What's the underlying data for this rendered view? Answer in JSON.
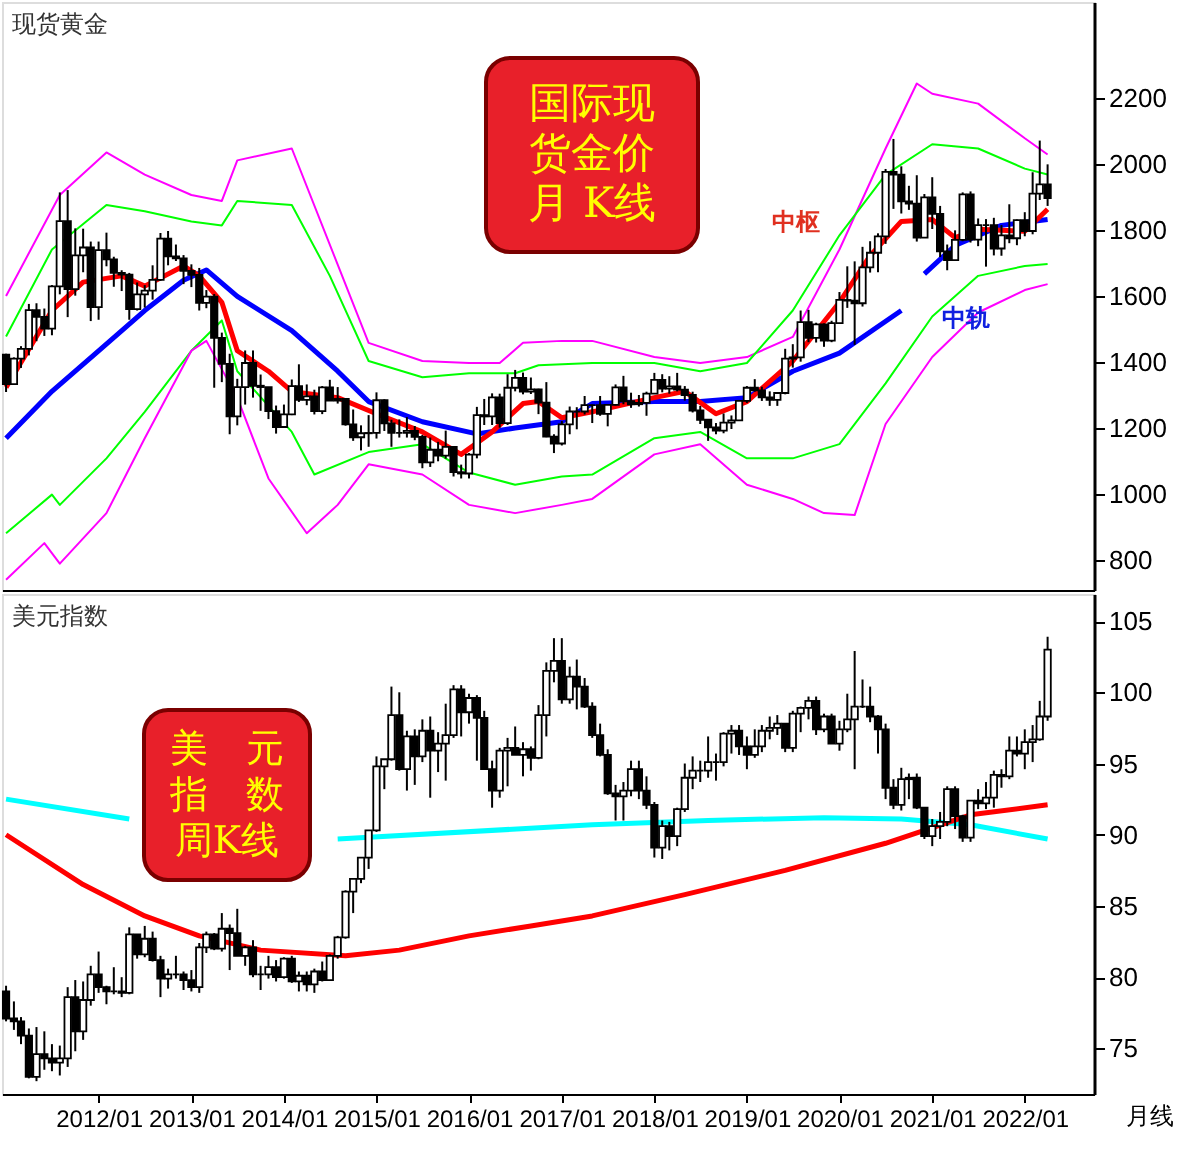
{
  "chart_data": [
    {
      "type": "candlestick",
      "title": "现货黄金",
      "grid": false,
      "tick_labels": "y",
      "xlim": [
        "2010-12-16",
        "2022-10-01"
      ],
      "ylim": [
        708,
        2490
      ],
      "yticks": [
        800,
        1000,
        1200,
        1400,
        1600,
        1800,
        2000,
        2200
      ],
      "x": [
        "2011-01",
        "2011-02",
        "2011-03",
        "2011-04",
        "2011-05",
        "2011-06",
        "2011-07",
        "2011-08",
        "2011-09",
        "2011-10",
        "2011-11",
        "2011-12",
        "2012-01",
        "2012-02",
        "2012-03",
        "2012-04",
        "2012-05",
        "2012-06",
        "2012-07",
        "2012-08",
        "2012-09",
        "2012-10",
        "2012-11",
        "2012-12",
        "2013-01",
        "2013-02",
        "2013-03",
        "2013-04",
        "2013-05",
        "2013-06",
        "2013-07",
        "2013-08",
        "2013-09",
        "2013-10",
        "2013-11",
        "2013-12",
        "2014-01",
        "2014-02",
        "2014-03",
        "2014-04",
        "2014-05",
        "2014-06",
        "2014-07",
        "2014-08",
        "2014-09",
        "2014-10",
        "2014-11",
        "2014-12",
        "2015-01",
        "2015-02",
        "2015-03",
        "2015-04",
        "2015-05",
        "2015-06",
        "2015-07",
        "2015-08",
        "2015-09",
        "2015-10",
        "2015-11",
        "2015-12",
        "2016-01",
        "2016-02",
        "2016-03",
        "2016-04",
        "2016-05",
        "2016-06",
        "2016-07",
        "2016-08",
        "2016-09",
        "2016-10",
        "2016-11",
        "2016-12",
        "2017-01",
        "2017-02",
        "2017-03",
        "2017-04",
        "2017-05",
        "2017-06",
        "2017-07",
        "2017-08",
        "2017-09",
        "2017-10",
        "2017-11",
        "2017-12",
        "2018-01",
        "2018-02",
        "2018-03",
        "2018-04",
        "2018-05",
        "2018-06",
        "2018-07",
        "2018-08",
        "2018-09",
        "2018-10",
        "2018-11",
        "2018-12",
        "2019-01",
        "2019-02",
        "2019-03",
        "2019-04",
        "2019-05",
        "2019-06",
        "2019-07",
        "2019-08",
        "2019-09",
        "2019-10",
        "2019-11",
        "2019-12",
        "2020-01",
        "2020-02",
        "2020-03",
        "2020-04",
        "2020-05",
        "2020-06",
        "2020-07",
        "2020-08",
        "2020-09",
        "2020-10",
        "2020-11",
        "2020-12",
        "2021-01",
        "2021-02",
        "2021-03",
        "2021-04",
        "2021-05",
        "2021-06",
        "2021-07",
        "2021-08",
        "2021-09",
        "2021-10",
        "2021-11",
        "2021-12",
        "2022-01",
        "2022-02",
        "2022-03",
        "2022-04"
      ],
      "ohlc": [
        [
          1421,
          1424,
          1308,
          1332
        ],
        [
          1332,
          1413,
          1330,
          1409
        ],
        [
          1409,
          1447,
          1381,
          1439
        ],
        [
          1439,
          1575,
          1419,
          1556
        ],
        [
          1556,
          1577,
          1462,
          1536
        ],
        [
          1536,
          1561,
          1478,
          1500
        ],
        [
          1500,
          1632,
          1480,
          1628
        ],
        [
          1628,
          1913,
          1604,
          1826
        ],
        [
          1826,
          1920,
          1535,
          1620
        ],
        [
          1620,
          1804,
          1600,
          1722
        ],
        [
          1722,
          1803,
          1671,
          1746
        ],
        [
          1746,
          1764,
          1523,
          1565
        ],
        [
          1565,
          1764,
          1527,
          1738
        ],
        [
          1738,
          1791,
          1689,
          1710
        ],
        [
          1710,
          1718,
          1627,
          1669
        ],
        [
          1669,
          1677,
          1614,
          1664
        ],
        [
          1664,
          1669,
          1527,
          1559
        ],
        [
          1559,
          1640,
          1555,
          1604
        ],
        [
          1604,
          1632,
          1564,
          1615
        ],
        [
          1615,
          1692,
          1588,
          1648
        ],
        [
          1648,
          1790,
          1645,
          1773
        ],
        [
          1773,
          1796,
          1692,
          1719
        ],
        [
          1719,
          1755,
          1705,
          1713
        ],
        [
          1713,
          1723,
          1635,
          1675
        ],
        [
          1675,
          1695,
          1626,
          1663
        ],
        [
          1663,
          1684,
          1555,
          1578
        ],
        [
          1578,
          1617,
          1562,
          1597
        ],
        [
          1597,
          1605,
          1321,
          1472
        ],
        [
          1472,
          1488,
          1338,
          1393
        ],
        [
          1393,
          1424,
          1180,
          1234
        ],
        [
          1234,
          1348,
          1207,
          1323
        ],
        [
          1323,
          1434,
          1270,
          1396
        ],
        [
          1396,
          1434,
          1291,
          1327
        ],
        [
          1327,
          1361,
          1251,
          1323
        ],
        [
          1323,
          1323,
          1226,
          1250
        ],
        [
          1250,
          1267,
          1182,
          1202
        ],
        [
          1202,
          1270,
          1200,
          1240
        ],
        [
          1240,
          1346,
          1238,
          1326
        ],
        [
          1326,
          1392,
          1278,
          1284
        ],
        [
          1284,
          1331,
          1268,
          1295
        ],
        [
          1295,
          1315,
          1240,
          1250
        ],
        [
          1250,
          1326,
          1241,
          1322
        ],
        [
          1322,
          1345,
          1282,
          1282
        ],
        [
          1282,
          1323,
          1273,
          1287
        ],
        [
          1287,
          1288,
          1206,
          1210
        ],
        [
          1210,
          1255,
          1160,
          1171
        ],
        [
          1171,
          1207,
          1131,
          1183
        ],
        [
          1183,
          1238,
          1142,
          1184
        ],
        [
          1184,
          1307,
          1167,
          1283
        ],
        [
          1283,
          1286,
          1190,
          1213
        ],
        [
          1213,
          1224,
          1142,
          1184
        ],
        [
          1184,
          1225,
          1170,
          1184
        ],
        [
          1184,
          1232,
          1170,
          1190
        ],
        [
          1190,
          1205,
          1162,
          1172
        ],
        [
          1172,
          1178,
          1077,
          1095
        ],
        [
          1095,
          1170,
          1081,
          1133
        ],
        [
          1133,
          1157,
          1098,
          1115
        ],
        [
          1115,
          1191,
          1106,
          1142
        ],
        [
          1142,
          1143,
          1052,
          1065
        ],
        [
          1065,
          1088,
          1046,
          1061
        ],
        [
          1061,
          1123,
          1046,
          1118
        ],
        [
          1118,
          1263,
          1107,
          1238
        ],
        [
          1238,
          1287,
          1208,
          1234
        ],
        [
          1234,
          1304,
          1208,
          1292
        ],
        [
          1292,
          1303,
          1200,
          1214
        ],
        [
          1214,
          1362,
          1208,
          1321
        ],
        [
          1321,
          1375,
          1310,
          1351
        ],
        [
          1351,
          1367,
          1301,
          1309
        ],
        [
          1309,
          1352,
          1302,
          1316
        ],
        [
          1316,
          1318,
          1241,
          1276
        ],
        [
          1276,
          1338,
          1171,
          1173
        ],
        [
          1173,
          1180,
          1123,
          1152
        ],
        [
          1152,
          1220,
          1146,
          1210
        ],
        [
          1210,
          1264,
          1180,
          1249
        ],
        [
          1249,
          1262,
          1195,
          1249
        ],
        [
          1249,
          1296,
          1240,
          1268
        ],
        [
          1268,
          1270,
          1214,
          1268
        ],
        [
          1268,
          1296,
          1236,
          1242
        ],
        [
          1242,
          1270,
          1204,
          1269
        ],
        [
          1269,
          1331,
          1267,
          1322
        ],
        [
          1322,
          1357,
          1271,
          1280
        ],
        [
          1280,
          1306,
          1260,
          1271
        ],
        [
          1271,
          1299,
          1264,
          1275
        ],
        [
          1275,
          1309,
          1236,
          1303
        ],
        [
          1303,
          1366,
          1303,
          1345
        ],
        [
          1345,
          1362,
          1307,
          1318
        ],
        [
          1318,
          1356,
          1303,
          1325
        ],
        [
          1325,
          1366,
          1310,
          1315
        ],
        [
          1315,
          1326,
          1282,
          1299
        ],
        [
          1299,
          1309,
          1246,
          1252
        ],
        [
          1252,
          1266,
          1211,
          1224
        ],
        [
          1224,
          1224,
          1160,
          1201
        ],
        [
          1201,
          1214,
          1180,
          1191
        ],
        [
          1191,
          1243,
          1183,
          1215
        ],
        [
          1215,
          1237,
          1196,
          1222
        ],
        [
          1222,
          1284,
          1221,
          1281
        ],
        [
          1281,
          1326,
          1275,
          1321
        ],
        [
          1321,
          1347,
          1309,
          1313
        ],
        [
          1313,
          1324,
          1281,
          1292
        ],
        [
          1292,
          1310,
          1266,
          1284
        ],
        [
          1284,
          1306,
          1266,
          1305
        ],
        [
          1305,
          1439,
          1301,
          1409
        ],
        [
          1409,
          1453,
          1382,
          1413
        ],
        [
          1413,
          1555,
          1400,
          1520
        ],
        [
          1520,
          1557,
          1459,
          1472
        ],
        [
          1472,
          1518,
          1458,
          1513
        ],
        [
          1513,
          1516,
          1445,
          1464
        ],
        [
          1464,
          1524,
          1459,
          1517
        ],
        [
          1517,
          1611,
          1517,
          1587
        ],
        [
          1587,
          1689,
          1563,
          1585
        ],
        [
          1585,
          1704,
          1451,
          1577
        ],
        [
          1577,
          1748,
          1567,
          1686
        ],
        [
          1686,
          1765,
          1670,
          1730
        ],
        [
          1730,
          1789,
          1671,
          1780
        ],
        [
          1780,
          1984,
          1757,
          1975
        ],
        [
          1975,
          2075,
          1863,
          1967
        ],
        [
          1967,
          1992,
          1849,
          1886
        ],
        [
          1886,
          1933,
          1860,
          1879
        ],
        [
          1879,
          1965,
          1764,
          1776
        ],
        [
          1776,
          1908,
          1775,
          1898
        ],
        [
          1898,
          1959,
          1802,
          1848
        ],
        [
          1848,
          1872,
          1717,
          1734
        ],
        [
          1734,
          1755,
          1677,
          1708
        ],
        [
          1708,
          1798,
          1705,
          1769
        ],
        [
          1769,
          1913,
          1765,
          1907
        ],
        [
          1907,
          1916,
          1761,
          1770
        ],
        [
          1770,
          1834,
          1750,
          1814
        ],
        [
          1814,
          1832,
          1688,
          1814
        ],
        [
          1814,
          1836,
          1722,
          1743
        ],
        [
          1743,
          1814,
          1721,
          1783
        ],
        [
          1783,
          1877,
          1759,
          1774
        ],
        [
          1774,
          1831,
          1753,
          1829
        ],
        [
          1829,
          1853,
          1780,
          1796
        ],
        [
          1796,
          1974,
          1786,
          1909
        ],
        [
          1909,
          2070,
          1890,
          1937
        ],
        [
          1937,
          1998,
          1872,
          1896
        ]
      ],
      "series": [
        {
          "type": "line",
          "color": "#ff00ff",
          "x": [
            "2011-01",
            "2011-08",
            "2012-02",
            "2012-07",
            "2013-01",
            "2013-05",
            "2013-07",
            "2014-02",
            "2014-12",
            "2015-07",
            "2016-01",
            "2016-05",
            "2016-08",
            "2017-01",
            "2017-05",
            "2018-01",
            "2018-07",
            "2019-01",
            "2019-07",
            "2020-01",
            "2020-07",
            "2020-11",
            "2021-01",
            "2021-07",
            "2022-01",
            "2022-04"
          ],
          "values": [
            1599,
            1905,
            2034,
            1967,
            1905,
            1887,
            2010,
            2046,
            1457,
            1402,
            1396,
            1396,
            1457,
            1463,
            1463,
            1414,
            1396,
            1414,
            1475,
            1740,
            2046,
            2243,
            2212,
            2182,
            2077,
            2028
          ]
        },
        {
          "type": "line",
          "color": "#00ff00",
          "x": [
            "2011-01",
            "2011-07",
            "2012-02",
            "2012-07",
            "2013-01",
            "2013-05",
            "2013-07",
            "2014-02",
            "2014-07",
            "2014-12",
            "2015-07",
            "2016-01",
            "2016-07",
            "2016-10",
            "2017-05",
            "2018-01",
            "2018-07",
            "2019-01",
            "2019-07",
            "2020-01",
            "2020-07",
            "2021-01",
            "2021-07",
            "2022-01",
            "2022-04"
          ],
          "values": [
            1476,
            1740,
            1875,
            1856,
            1825,
            1813,
            1887,
            1875,
            1660,
            1402,
            1353,
            1365,
            1365,
            1389,
            1396,
            1396,
            1371,
            1396,
            1555,
            1783,
            1967,
            2059,
            2046,
            1985,
            1967
          ]
        },
        {
          "type": "line",
          "color": "#00ff00",
          "x": [
            "2011-01",
            "2011-07",
            "2011-08",
            "2012-02",
            "2012-07",
            "2013-01",
            "2013-05",
            "2013-07",
            "2014-02",
            "2014-05",
            "2014-12",
            "2015-07",
            "2016-01",
            "2016-07",
            "2017-01",
            "2017-05",
            "2018-01",
            "2018-07",
            "2019-01",
            "2019-07",
            "2020-01",
            "2020-07",
            "2021-01",
            "2021-07",
            "2022-01",
            "2022-04"
          ],
          "values": [
            880,
            997,
            966,
            1107,
            1248,
            1433,
            1525,
            1371,
            1187,
            1058,
            1126,
            1150,
            1064,
            1027,
            1052,
            1058,
            1168,
            1187,
            1107,
            1107,
            1150,
            1334,
            1537,
            1660,
            1690,
            1696
          ]
        },
        {
          "type": "line",
          "color": "#ff00ff",
          "x": [
            "2011-01",
            "2011-06",
            "2011-08",
            "2012-02",
            "2012-07",
            "2013-01",
            "2013-03",
            "2013-07",
            "2013-11",
            "2014-04",
            "2014-08",
            "2014-12",
            "2015-07",
            "2016-01",
            "2016-07",
            "2017-01",
            "2017-05",
            "2018-01",
            "2018-07",
            "2019-01",
            "2019-07",
            "2019-11",
            "2020-03",
            "2020-07",
            "2021-01",
            "2021-07",
            "2022-01",
            "2022-04"
          ],
          "values": [
            739,
            850,
            788,
            941,
            1168,
            1433,
            1463,
            1291,
            1046,
            880,
            966,
            1089,
            1058,
            966,
            941,
            966,
            984,
            1119,
            1150,
            1027,
            984,
            941,
            935,
            1211,
            1414,
            1549,
            1617,
            1635
          ]
        },
        {
          "type": "line",
          "color": "#0000ff",
          "x": [
            "2011-01",
            "2011-07",
            "2012-01",
            "2012-07",
            "2012-12",
            "2013-03",
            "2013-07",
            "2014-02",
            "2014-08",
            "2014-12",
            "2015-07",
            "2016-02",
            "2016-07",
            "2017-01",
            "2017-05",
            "2018-01",
            "2018-07",
            "2019-01",
            "2019-07",
            "2020-01",
            "2020-09",
            "2020-10",
            "2020-12",
            "2021-04",
            "2021-10",
            "2022-04"
          ],
          "values": [
            1168,
            1310,
            1433,
            1555,
            1647,
            1678,
            1598,
            1494,
            1371,
            1279,
            1218,
            1181,
            1199,
            1218,
            1273,
            1279,
            1279,
            1291,
            1371,
            1426,
            1555,
            null,
            1666,
            1752,
            1813,
            1831
          ]
        },
        {
          "type": "line",
          "color": "#ff0000",
          "x": [
            "2011-01",
            "2011-07",
            "2011-11",
            "2012-04",
            "2012-07",
            "2012-12",
            "2013-02",
            "2013-05",
            "2013-07",
            "2013-11",
            "2014-02",
            "2014-08",
            "2015-01",
            "2015-07",
            "2015-12",
            "2016-04",
            "2016-08",
            "2016-10",
            "2017-01",
            "2017-05",
            "2018-01",
            "2018-05",
            "2018-09",
            "2019-01",
            "2019-07",
            "2020-01",
            "2020-05",
            "2020-09",
            "2021-01",
            "2021-04",
            "2021-07",
            "2022-01",
            "2022-04"
          ],
          "values": [
            1322,
            1555,
            1641,
            1660,
            1629,
            1690,
            1660,
            1580,
            1433,
            1371,
            1310,
            1291,
            1242,
            1187,
            1119,
            1187,
            1273,
            1279,
            1230,
            1248,
            1291,
            1310,
            1242,
            1279,
            1402,
            1580,
            1721,
            1825,
            1831,
            1776,
            1801,
            1795,
            1862
          ]
        }
      ],
      "annotations": [
        "国际现货金价月 K线",
        "中枢",
        "中轨"
      ]
    },
    {
      "type": "candlestick",
      "title": "美元指数",
      "grid": false,
      "xlim": [
        "2010-12-16",
        "2022-10-01"
      ],
      "ylim": [
        71.8,
        106.9
      ],
      "yticks": [
        75,
        80,
        85,
        90,
        95,
        100,
        105
      ],
      "xticks": [
        {
          "value": "2012-01",
          "label": "2012/01"
        },
        {
          "value": "2013-01",
          "label": "2013/01"
        },
        {
          "value": "2014-01",
          "label": "2014/01"
        },
        {
          "value": "2015-01",
          "label": "2015/01"
        },
        {
          "value": "2016-01",
          "label": "2016/01"
        },
        {
          "value": "2017-01",
          "label": "2017/01"
        },
        {
          "value": "2018-01",
          "label": "2018/01"
        },
        {
          "value": "2019-01",
          "label": "2019/01"
        },
        {
          "value": "2020-01",
          "label": "2020/01"
        },
        {
          "value": "2021-01",
          "label": "2021/01"
        },
        {
          "value": "2022-01",
          "label": "2022/01"
        }
      ],
      "x": [
        "2011-01",
        "2011-02",
        "2011-03",
        "2011-04",
        "2011-05",
        "2011-06",
        "2011-07",
        "2011-08",
        "2011-09",
        "2011-10",
        "2011-11",
        "2011-12",
        "2012-01",
        "2012-02",
        "2012-03",
        "2012-04",
        "2012-05",
        "2012-06",
        "2012-07",
        "2012-08",
        "2012-09",
        "2012-10",
        "2012-11",
        "2012-12",
        "2013-01",
        "2013-02",
        "2013-03",
        "2013-04",
        "2013-05",
        "2013-06",
        "2013-07",
        "2013-08",
        "2013-09",
        "2013-10",
        "2013-11",
        "2013-12",
        "2014-01",
        "2014-02",
        "2014-03",
        "2014-04",
        "2014-05",
        "2014-06",
        "2014-07",
        "2014-08",
        "2014-09",
        "2014-10",
        "2014-11",
        "2014-12",
        "2015-01",
        "2015-02",
        "2015-03",
        "2015-04",
        "2015-05",
        "2015-06",
        "2015-07",
        "2015-08",
        "2015-09",
        "2015-10",
        "2015-11",
        "2015-12",
        "2016-01",
        "2016-02",
        "2016-03",
        "2016-04",
        "2016-05",
        "2016-06",
        "2016-07",
        "2016-08",
        "2016-09",
        "2016-10",
        "2016-11",
        "2016-12",
        "2017-01",
        "2017-02",
        "2017-03",
        "2017-04",
        "2017-05",
        "2017-06",
        "2017-07",
        "2017-08",
        "2017-09",
        "2017-10",
        "2017-11",
        "2017-12",
        "2018-01",
        "2018-02",
        "2018-03",
        "2018-04",
        "2018-05",
        "2018-06",
        "2018-07",
        "2018-08",
        "2018-09",
        "2018-10",
        "2018-11",
        "2018-12",
        "2019-01",
        "2019-02",
        "2019-03",
        "2019-04",
        "2019-05",
        "2019-06",
        "2019-07",
        "2019-08",
        "2019-09",
        "2019-10",
        "2019-11",
        "2019-12",
        "2020-01",
        "2020-02",
        "2020-03",
        "2020-04",
        "2020-05",
        "2020-06",
        "2020-07",
        "2020-08",
        "2020-09",
        "2020-10",
        "2020-11",
        "2020-12",
        "2021-01",
        "2021-02",
        "2021-03",
        "2021-04",
        "2021-05",
        "2021-06",
        "2021-07",
        "2021-08",
        "2021-09",
        "2021-10",
        "2021-11",
        "2021-12",
        "2022-01",
        "2022-02",
        "2022-03",
        "2022-04"
      ],
      "ohlc": [
        [
          79.0,
          79.4,
          76.9,
          77.1
        ],
        [
          77.1,
          78.3,
          76.3,
          76.9
        ],
        [
          76.9,
          77.2,
          75.3,
          75.9
        ],
        [
          75.9,
          76.4,
          72.9,
          73.0
        ],
        [
          73.0,
          76.5,
          72.7,
          74.6
        ],
        [
          74.6,
          76.2,
          73.5,
          74.3
        ],
        [
          74.3,
          75.3,
          73.4,
          74.0
        ],
        [
          74.0,
          75.2,
          73.1,
          74.3
        ],
        [
          74.3,
          79.3,
          73.7,
          78.6
        ],
        [
          78.6,
          79.8,
          74.8,
          76.2
        ],
        [
          76.2,
          79.7,
          75.6,
          78.4
        ],
        [
          78.4,
          80.8,
          78.0,
          80.2
        ],
        [
          80.2,
          81.8,
          78.9,
          79.3
        ],
        [
          79.3,
          79.4,
          78.1,
          79.0
        ],
        [
          79.0,
          80.7,
          78.8,
          79.0
        ],
        [
          79.0,
          80.0,
          78.6,
          78.9
        ],
        [
          78.9,
          83.5,
          78.8,
          83.0
        ],
        [
          83.0,
          83.0,
          81.3,
          81.6
        ],
        [
          81.6,
          83.6,
          81.4,
          82.7
        ],
        [
          82.7,
          83.2,
          81.1,
          81.2
        ],
        [
          81.2,
          81.5,
          78.6,
          79.9
        ],
        [
          79.9,
          80.6,
          79.2,
          80.2
        ],
        [
          80.2,
          81.5,
          79.9,
          80.2
        ],
        [
          80.2,
          80.4,
          79.1,
          79.8
        ],
        [
          79.8,
          80.5,
          79.0,
          79.3
        ],
        [
          79.3,
          82.4,
          78.9,
          82.1
        ],
        [
          82.1,
          83.2,
          81.7,
          83.0
        ],
        [
          83.0,
          83.1,
          81.9,
          82.0
        ],
        [
          82.0,
          84.5,
          81.8,
          83.4
        ],
        [
          83.4,
          83.7,
          80.5,
          83.1
        ],
        [
          83.1,
          84.8,
          81.5,
          81.5
        ],
        [
          81.5,
          82.2,
          80.8,
          82.1
        ],
        [
          82.1,
          82.6,
          80.0,
          80.2
        ],
        [
          80.2,
          80.8,
          79.1,
          80.2
        ],
        [
          80.2,
          81.5,
          79.9,
          80.7
        ],
        [
          80.7,
          81.2,
          79.7,
          80.0
        ],
        [
          80.0,
          81.4,
          79.9,
          81.3
        ],
        [
          81.3,
          81.5,
          79.6,
          79.7
        ],
        [
          79.7,
          80.4,
          79.0,
          80.1
        ],
        [
          80.1,
          80.4,
          79.0,
          79.5
        ],
        [
          79.5,
          80.6,
          78.9,
          80.4
        ],
        [
          80.4,
          81.1,
          79.7,
          79.8
        ],
        [
          79.8,
          81.6,
          79.8,
          81.5
        ],
        [
          81.5,
          82.9,
          81.3,
          82.8
        ],
        [
          82.8,
          86.1,
          82.7,
          86.0
        ],
        [
          86.0,
          86.9,
          84.5,
          86.9
        ],
        [
          86.9,
          88.4,
          86.6,
          88.4
        ],
        [
          88.4,
          90.3,
          87.6,
          90.3
        ],
        [
          90.3,
          95.5,
          90.2,
          94.8
        ],
        [
          94.8,
          95.3,
          93.2,
          95.3
        ],
        [
          95.3,
          100.4,
          95.2,
          98.4
        ],
        [
          98.4,
          100.0,
          94.5,
          94.6
        ],
        [
          94.6,
          97.3,
          93.1,
          96.9
        ],
        [
          96.9,
          97.4,
          93.5,
          95.5
        ],
        [
          95.5,
          98.1,
          95.1,
          97.3
        ],
        [
          97.3,
          98.3,
          92.6,
          95.9
        ],
        [
          95.9,
          97.2,
          94.4,
          96.4
        ],
        [
          96.4,
          99.2,
          93.8,
          97.0
        ],
        [
          97.0,
          100.5,
          96.8,
          100.2
        ],
        [
          100.2,
          100.5,
          96.9,
          98.6
        ],
        [
          98.6,
          99.9,
          97.8,
          99.6
        ],
        [
          99.6,
          99.8,
          95.2,
          98.2
        ],
        [
          98.2,
          98.7,
          94.6,
          94.6
        ],
        [
          94.6,
          95.2,
          91.9,
          93.1
        ],
        [
          93.1,
          96.1,
          92.6,
          95.9
        ],
        [
          95.9,
          96.8,
          93.4,
          96.1
        ],
        [
          96.1,
          97.6,
          95.6,
          95.6
        ],
        [
          95.6,
          96.5,
          94.1,
          96.0
        ],
        [
          96.0,
          96.2,
          94.5,
          95.4
        ],
        [
          95.4,
          99.1,
          95.3,
          98.4
        ],
        [
          98.4,
          102.1,
          96.9,
          101.5
        ],
        [
          101.5,
          103.8,
          100.7,
          102.2
        ],
        [
          102.2,
          103.8,
          99.2,
          99.5
        ],
        [
          99.5,
          101.8,
          99.2,
          101.1
        ],
        [
          101.1,
          102.3,
          98.8,
          100.4
        ],
        [
          100.4,
          101.0,
          98.9,
          99.0
        ],
        [
          99.0,
          99.3,
          96.8,
          97.0
        ],
        [
          97.0,
          97.8,
          95.5,
          95.6
        ],
        [
          95.6,
          96.0,
          92.8,
          92.9
        ],
        [
          92.9,
          93.5,
          91.0,
          92.7
        ],
        [
          92.7,
          93.7,
          91.0,
          93.1
        ],
        [
          93.1,
          95.2,
          92.7,
          94.6
        ],
        [
          94.6,
          95.2,
          92.5,
          93.1
        ],
        [
          93.1,
          94.1,
          91.8,
          92.1
        ],
        [
          92.1,
          92.3,
          88.4,
          89.1
        ],
        [
          89.1,
          91.0,
          88.3,
          90.6
        ],
        [
          90.6,
          90.9,
          88.9,
          89.9
        ],
        [
          89.9,
          91.9,
          89.2,
          91.8
        ],
        [
          91.8,
          95.0,
          91.6,
          94.0
        ],
        [
          94.0,
          95.5,
          93.2,
          94.5
        ],
        [
          94.5,
          95.2,
          93.7,
          94.5
        ],
        [
          94.5,
          96.9,
          94.0,
          95.1
        ],
        [
          95.1,
          95.7,
          93.8,
          95.1
        ],
        [
          95.1,
          97.2,
          94.8,
          97.1
        ],
        [
          97.1,
          97.7,
          95.7,
          97.3
        ],
        [
          97.3,
          97.7,
          95.6,
          96.2
        ],
        [
          96.2,
          96.9,
          94.6,
          95.6
        ],
        [
          95.6,
          97.4,
          95.4,
          96.2
        ],
        [
          96.2,
          97.7,
          95.8,
          97.3
        ],
        [
          97.3,
          98.3,
          96.7,
          97.5
        ],
        [
          97.5,
          98.4,
          97.0,
          97.8
        ],
        [
          97.8,
          97.8,
          95.8,
          96.1
        ],
        [
          96.1,
          98.7,
          95.8,
          98.5
        ],
        [
          98.5,
          99.0,
          97.2,
          98.9
        ],
        [
          98.9,
          99.7,
          98.1,
          99.4
        ],
        [
          99.4,
          99.7,
          97.0,
          97.4
        ],
        [
          97.4,
          98.5,
          97.2,
          98.3
        ],
        [
          98.3,
          98.5,
          96.4,
          96.4
        ],
        [
          96.4,
          98.0,
          95.9,
          97.4
        ],
        [
          97.4,
          99.9,
          97.2,
          98.1
        ],
        [
          98.1,
          102.9,
          94.6,
          99.0
        ],
        [
          99.0,
          100.9,
          98.9,
          99.0
        ],
        [
          99.0,
          100.4,
          97.9,
          98.3
        ],
        [
          98.3,
          98.4,
          95.7,
          97.4
        ],
        [
          97.4,
          97.8,
          92.5,
          93.3
        ],
        [
          93.3,
          93.9,
          91.8,
          92.1
        ],
        [
          92.1,
          94.7,
          91.7,
          93.9
        ],
        [
          93.9,
          94.3,
          92.5,
          94.0
        ],
        [
          94.0,
          94.3,
          91.8,
          91.9
        ],
        [
          91.9,
          91.9,
          89.7,
          89.9
        ],
        [
          89.9,
          91.1,
          89.2,
          90.6
        ],
        [
          90.6,
          91.6,
          89.7,
          90.9
        ],
        [
          90.9,
          93.4,
          90.6,
          93.2
        ],
        [
          93.2,
          93.4,
          90.4,
          91.3
        ],
        [
          91.3,
          91.4,
          89.5,
          89.8
        ],
        [
          89.8,
          92.4,
          89.5,
          92.4
        ],
        [
          92.4,
          93.2,
          91.8,
          92.2
        ],
        [
          92.2,
          93.7,
          91.8,
          92.6
        ],
        [
          92.6,
          94.5,
          91.9,
          94.2
        ],
        [
          94.2,
          94.6,
          93.3,
          94.1
        ],
        [
          94.1,
          96.9,
          93.9,
          95.9
        ],
        [
          95.9,
          96.9,
          95.5,
          95.7
        ],
        [
          95.7,
          97.4,
          94.6,
          96.5
        ],
        [
          96.5,
          97.7,
          95.1,
          96.7
        ],
        [
          96.7,
          99.4,
          96.6,
          98.3
        ],
        [
          98.3,
          103.9,
          98.0,
          103.0
        ]
      ],
      "series": [
        {
          "type": "line",
          "color": "#00ffff",
          "x": [
            "2011-01",
            "2012-05",
            "2012-06",
            "2014-08",
            "2017-05",
            "2018-08",
            "2019-11",
            "2020-09",
            "2021-06",
            "2022-04"
          ],
          "values": [
            92.5,
            91.1,
            null,
            89.7,
            90.7,
            91.0,
            91.2,
            91.1,
            90.7,
            89.7
          ]
        },
        {
          "type": "line",
          "color": "#ff0000",
          "x": [
            "2011-01",
            "2011-11",
            "2012-07",
            "2013-02",
            "2013-10",
            "2014-09",
            "2015-04",
            "2016-01",
            "2016-09",
            "2017-05",
            "2018-05",
            "2019-06",
            "2020-07",
            "2021-06",
            "2022-04"
          ],
          "values": [
            90.0,
            86.5,
            84.3,
            82.9,
            81.9,
            81.5,
            81.9,
            82.9,
            83.6,
            84.3,
            85.8,
            87.5,
            89.4,
            91.4,
            92.1
          ]
        }
      ],
      "annotations": [
        "美　元指　数周K线",
        "月线"
      ]
    }
  ]
}
